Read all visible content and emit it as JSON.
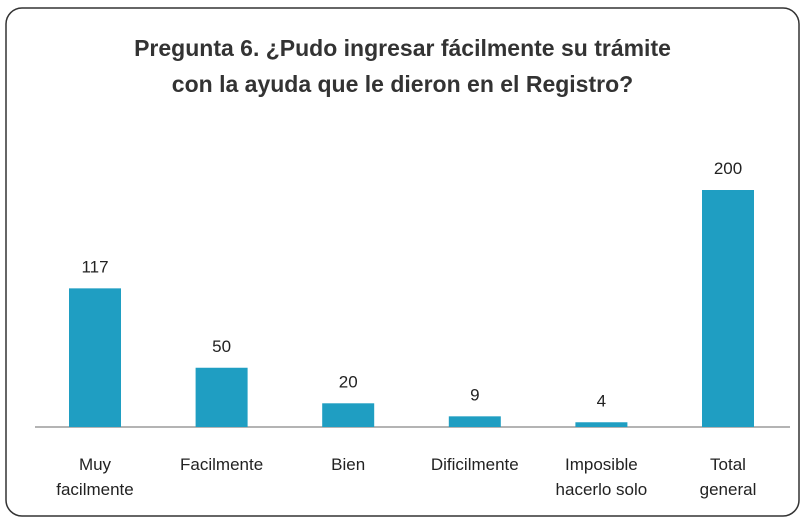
{
  "chart_data": {
    "type": "bar",
    "title": "Pregunta 6. ¿Pudo ingresar fácilmente su trámite\ncon la ayuda que le dieron en el Registro?",
    "categories": [
      "Muy\nfacilmente",
      "Facilmente",
      "Bien",
      "Dificilmente",
      "Imposible\nhacerlo solo",
      "Total\ngeneral"
    ],
    "values": [
      117,
      50,
      20,
      9,
      4,
      200
    ],
    "color": "#1f9ec2"
  }
}
